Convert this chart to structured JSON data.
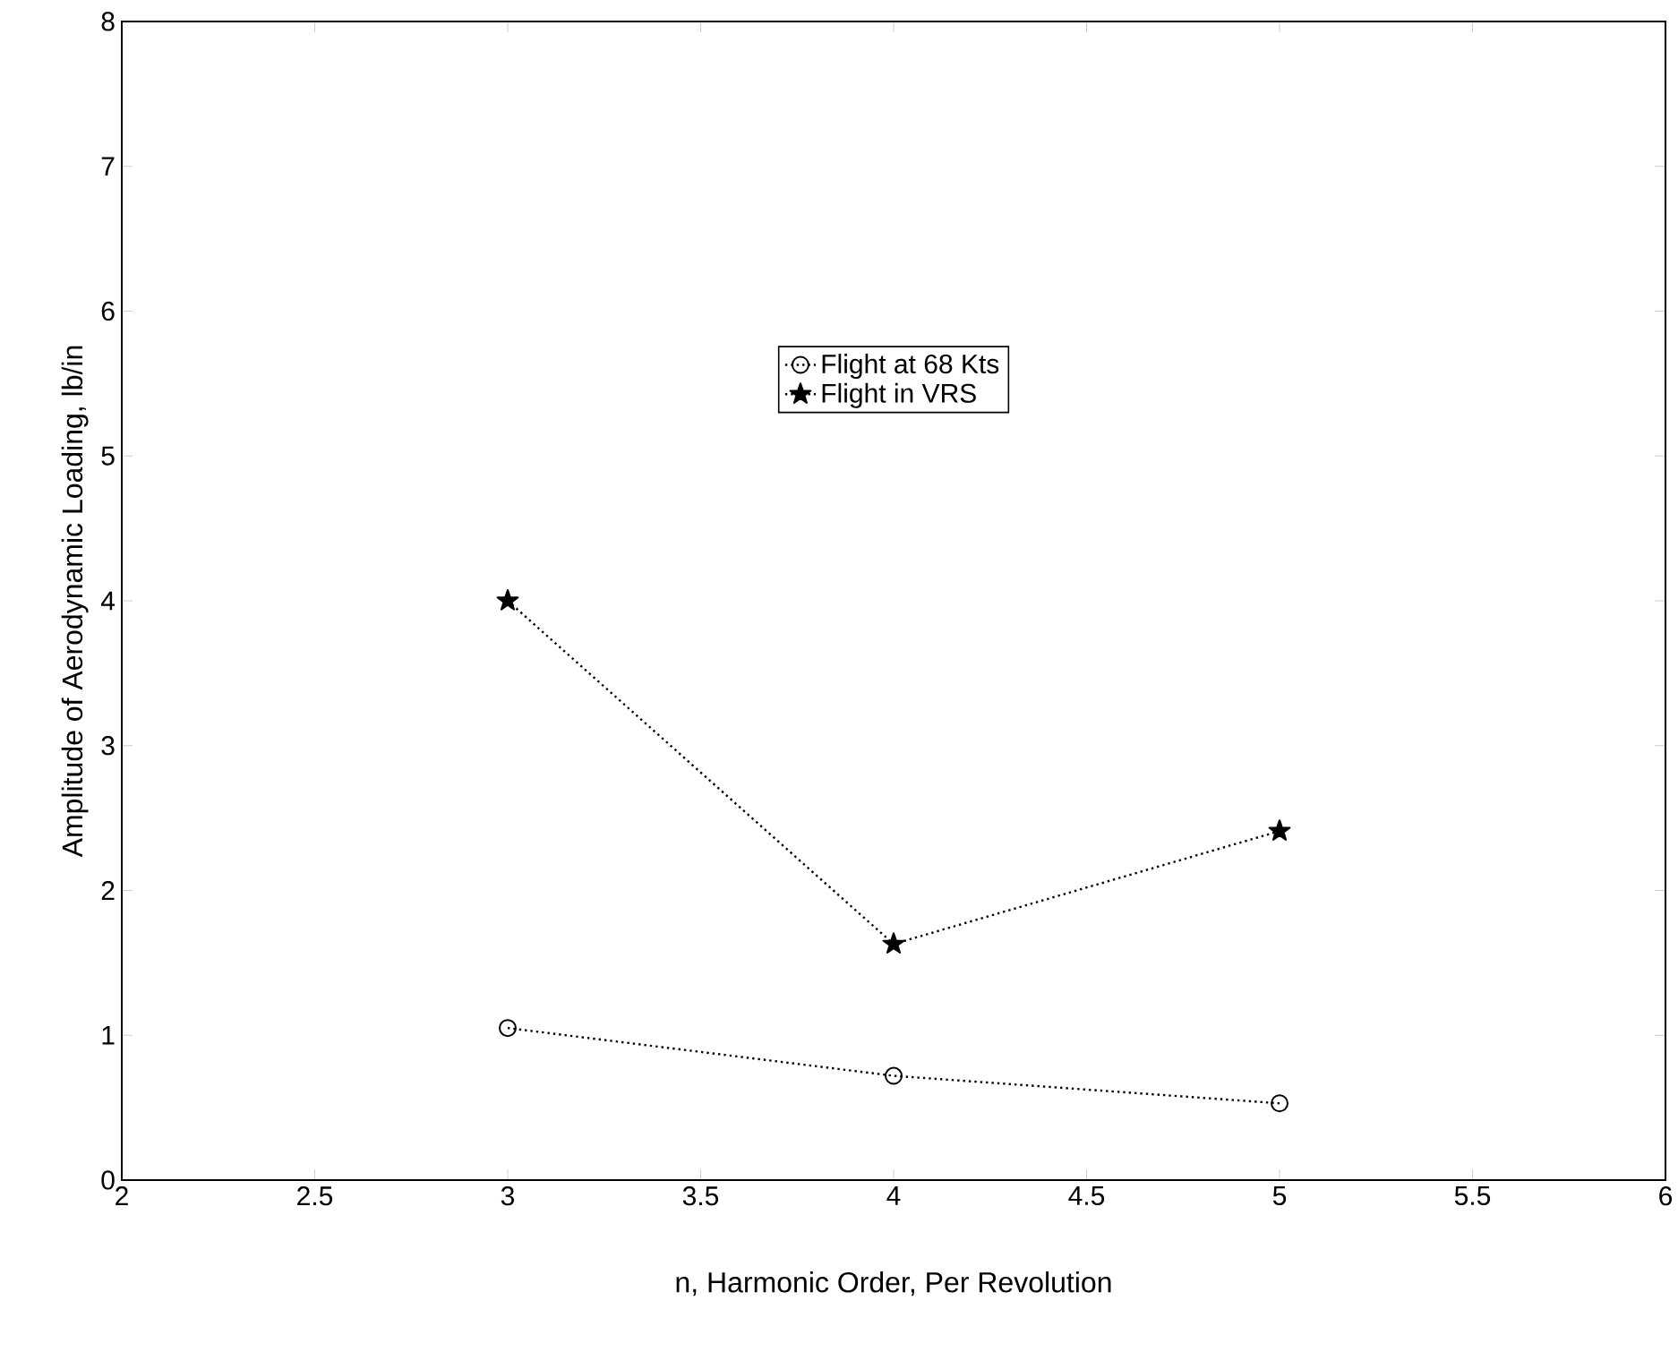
{
  "chart_data": {
    "type": "line",
    "xlabel": "n, Harmonic Order, Per Revolution",
    "ylabel": "Amplitude of Aerodynamic Loading, lb/in",
    "x": [
      3,
      4,
      5
    ],
    "series": [
      {
        "name": "Flight at 68 Kts",
        "color": "#000000",
        "values": [
          1.05,
          0.72,
          0.53
        ],
        "marker": "circle",
        "line_style": "dotted"
      },
      {
        "name": "Flight in VRS",
        "color": "#000000",
        "values": [
          4.0,
          1.63,
          2.41
        ],
        "marker": "star",
        "line_style": "dotted"
      }
    ],
    "xlim": [
      2,
      6
    ],
    "xticks": [
      2,
      2.5,
      3,
      3.5,
      4,
      4.5,
      5,
      5.5,
      6
    ],
    "ylim": [
      0,
      8
    ],
    "yticks": [
      0,
      1,
      2,
      3,
      4,
      5,
      6,
      7,
      8
    ],
    "legend": "top"
  }
}
